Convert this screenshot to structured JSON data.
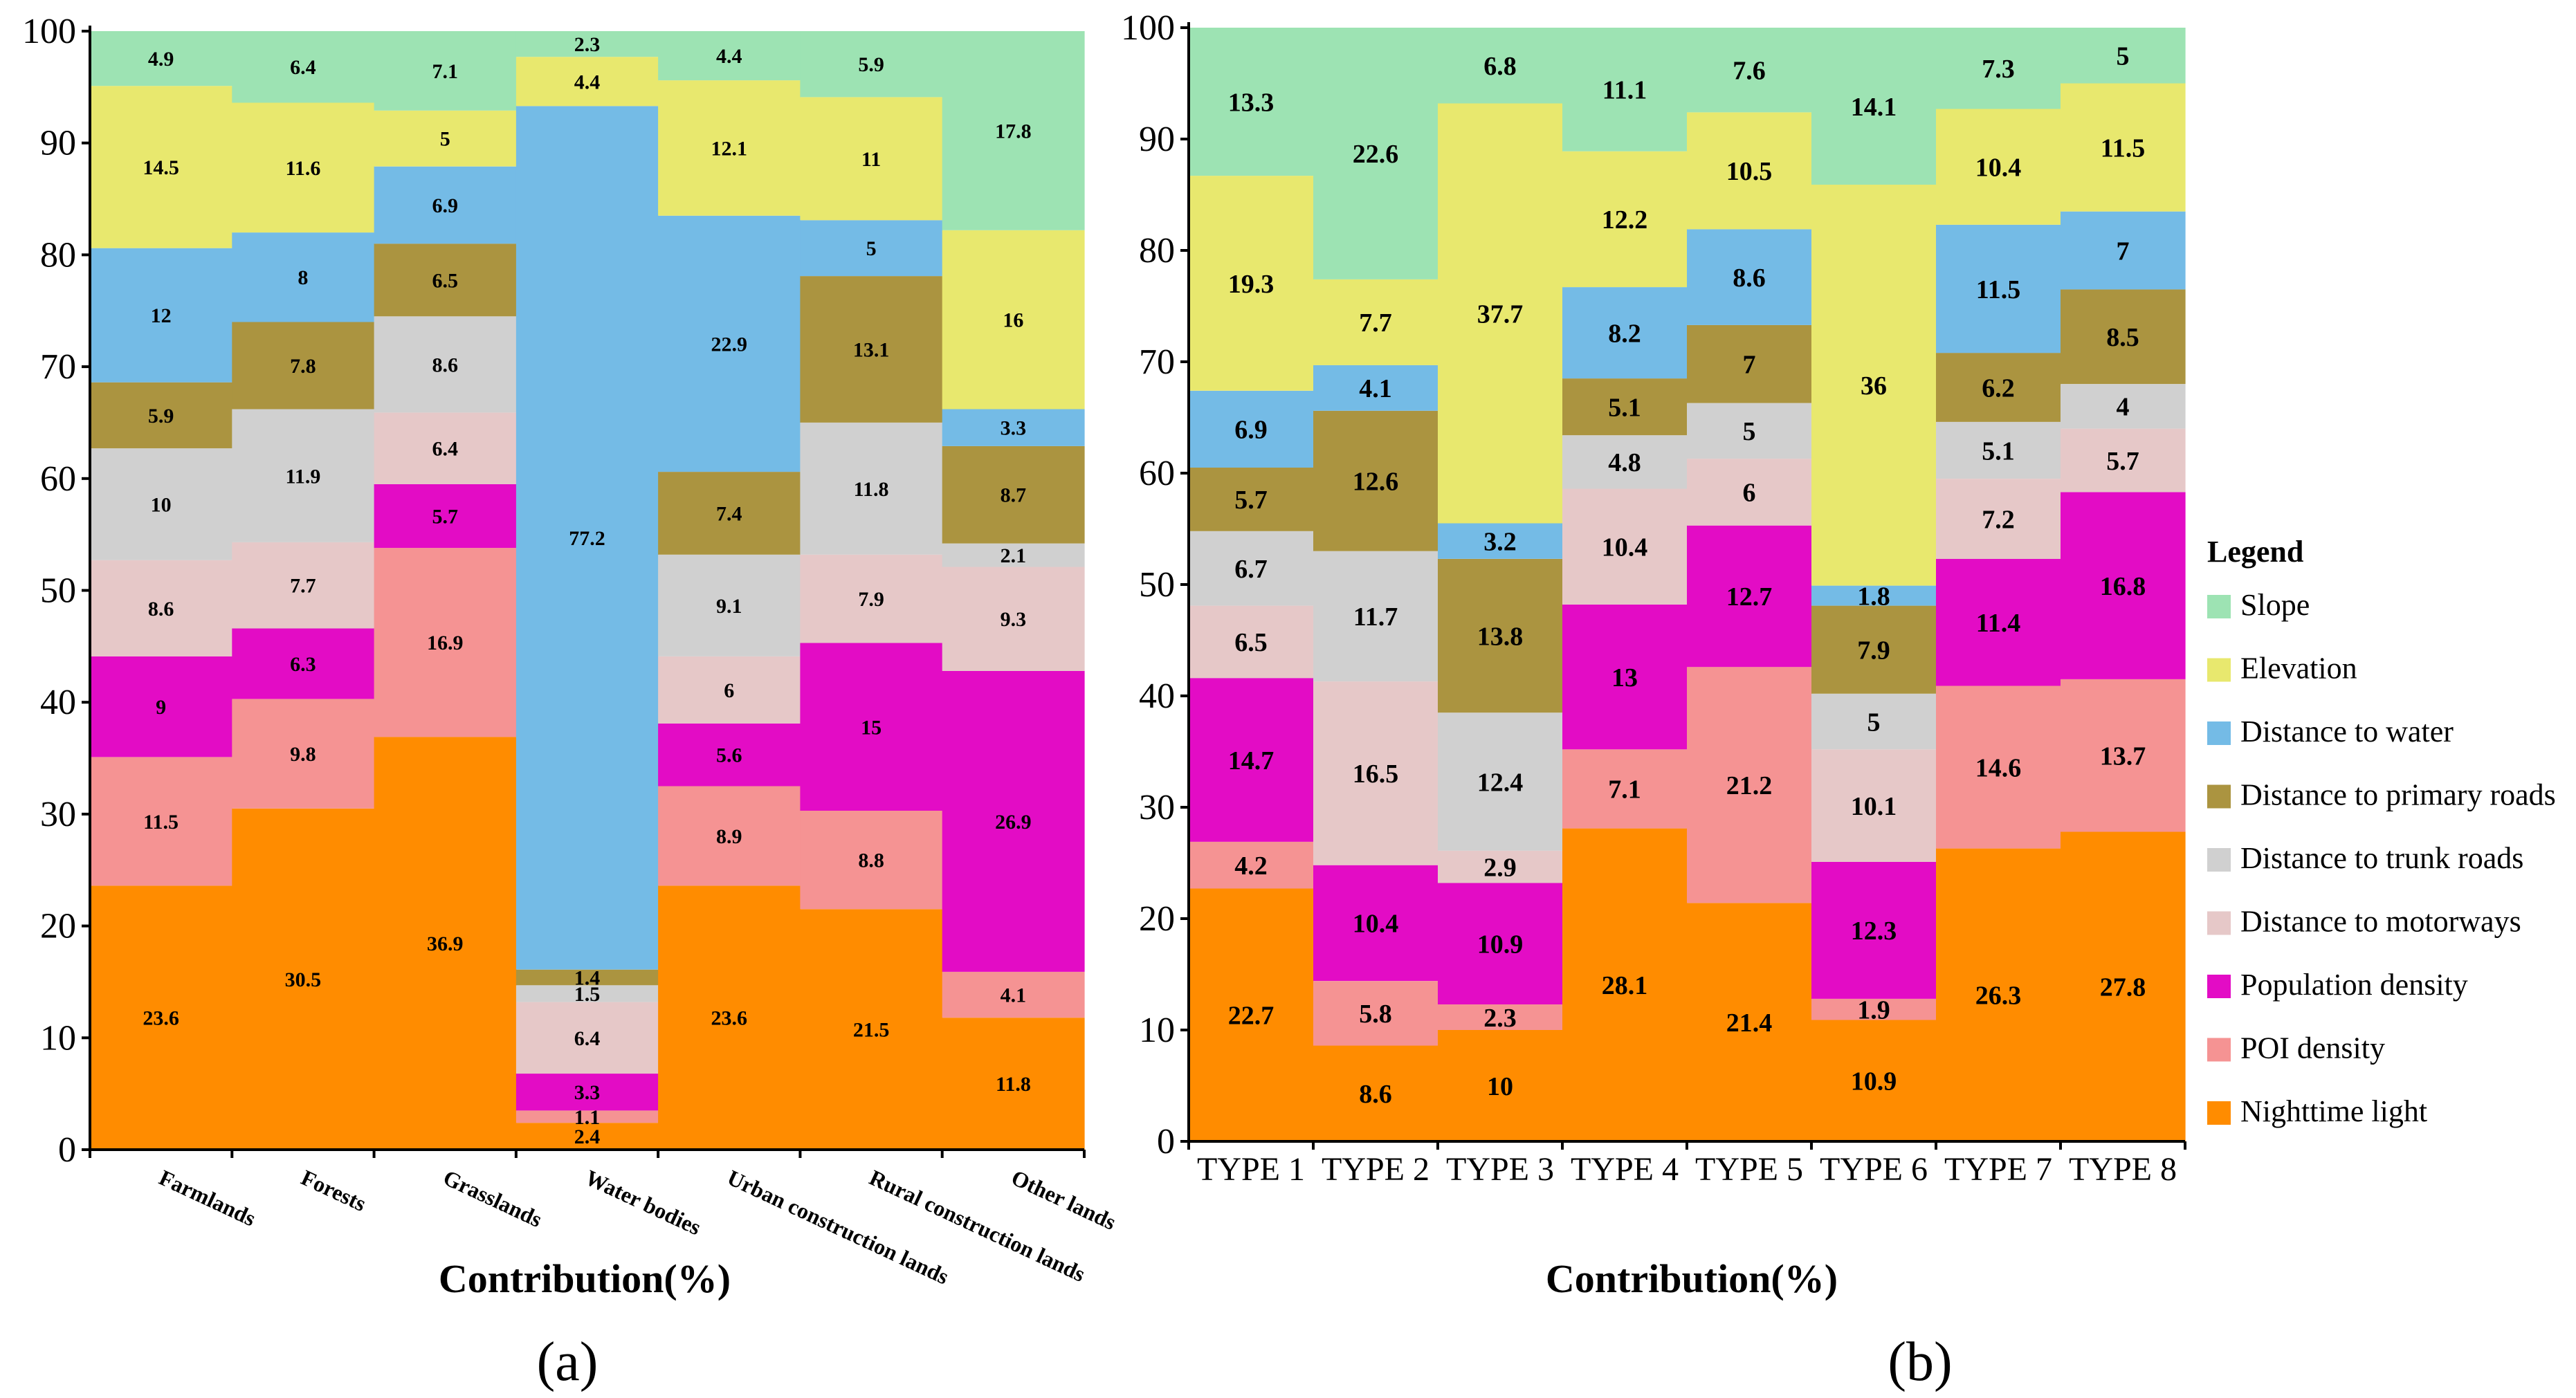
{
  "chart_data": [
    {
      "type": "bar",
      "stacked": true,
      "panel": "(a)",
      "title": "",
      "xlabel": "Contribution(%)",
      "ylabel": "",
      "ylim": [
        0,
        100
      ],
      "yticks": [
        0,
        10,
        20,
        30,
        40,
        50,
        60,
        70,
        80,
        90,
        100
      ],
      "categories": [
        "Farmlands",
        "Forests",
        "Grasslands",
        "Water bodies",
        "Urban construction lands",
        "Rural construction lands",
        "Other lands"
      ],
      "series": [
        {
          "name": "Nighttime light",
          "values": [
            23.6,
            30.5,
            36.9,
            2.4,
            23.6,
            21.5,
            11.8
          ]
        },
        {
          "name": "POI density",
          "values": [
            11.5,
            9.8,
            16.9,
            1.1,
            8.9,
            8.8,
            4.1
          ]
        },
        {
          "name": "Population density",
          "values": [
            9,
            6.3,
            5.7,
            3.3,
            5.6,
            15,
            26.9
          ]
        },
        {
          "name": "Distance  to motorways",
          "values": [
            8.6,
            7.7,
            6.4,
            6.4,
            6,
            7.9,
            9.3
          ]
        },
        {
          "name": "Distance to trunk roads",
          "values": [
            10,
            11.9,
            8.6,
            1.5,
            9.1,
            11.8,
            2.1
          ]
        },
        {
          "name": "Distance to primary roads",
          "values": [
            5.9,
            7.8,
            6.5,
            1.4,
            7.4,
            13.1,
            8.7
          ]
        },
        {
          "name": "Distance to water",
          "values": [
            12,
            8,
            6.9,
            77.2,
            22.9,
            5,
            3.3
          ]
        },
        {
          "name": "Elevation",
          "values": [
            14.5,
            11.6,
            5,
            4.4,
            12.1,
            11,
            16
          ]
        },
        {
          "name": "Slope",
          "values": [
            4.9,
            6.4,
            7.1,
            2.3,
            4.4,
            5.9,
            17.8
          ]
        }
      ]
    },
    {
      "type": "bar",
      "stacked": true,
      "panel": "(b)",
      "title": "",
      "xlabel": "Contribution(%)",
      "ylabel": "",
      "ylim": [
        0,
        100
      ],
      "yticks": [
        0,
        10,
        20,
        30,
        40,
        50,
        60,
        70,
        80,
        90,
        100
      ],
      "categories": [
        "TYPE 1",
        "TYPE 2",
        "TYPE 3",
        "TYPE 4",
        "TYPE 5",
        "TYPE 6",
        "TYPE 7",
        "TYPE 8"
      ],
      "series": [
        {
          "name": "Nighttime light",
          "values": [
            22.7,
            8.6,
            10,
            28.1,
            21.4,
            10.9,
            26.3,
            27.8
          ]
        },
        {
          "name": "POI density",
          "values": [
            4.2,
            5.8,
            2.3,
            7.1,
            21.2,
            1.9,
            14.6,
            13.7
          ]
        },
        {
          "name": "Population density",
          "values": [
            14.7,
            10.4,
            10.9,
            13,
            12.7,
            12.3,
            11.4,
            16.8
          ]
        },
        {
          "name": "Distance  to motorways",
          "values": [
            6.5,
            16.5,
            2.9,
            10.4,
            6,
            10.1,
            7.2,
            5.7
          ]
        },
        {
          "name": "Distance to trunk roads",
          "values": [
            6.7,
            11.7,
            12.4,
            4.8,
            5,
            5,
            5.1,
            4
          ]
        },
        {
          "name": "Distance to primary roads",
          "values": [
            5.7,
            12.6,
            13.8,
            5.1,
            7,
            7.9,
            6.2,
            8.5
          ]
        },
        {
          "name": "Distance to water",
          "values": [
            6.9,
            4.1,
            3.2,
            8.2,
            8.6,
            1.8,
            11.5,
            7
          ]
        },
        {
          "name": "Elevation",
          "values": [
            19.3,
            7.7,
            37.7,
            12.2,
            10.5,
            36,
            10.4,
            11.5
          ]
        },
        {
          "name": "Slope",
          "values": [
            13.3,
            22.6,
            6.8,
            11.1,
            7.6,
            14.1,
            7.3,
            5
          ]
        }
      ]
    }
  ],
  "legend": {
    "title": "Legend",
    "items": [
      {
        "name": "Slope",
        "color": "#9de3b3"
      },
      {
        "name": "Elevation",
        "color": "#e8e86e"
      },
      {
        "name": "Distance to water",
        "color": "#74bbe6"
      },
      {
        "name": "Distance to primary roads",
        "color": "#ab9440"
      },
      {
        "name": "Distance to trunk roads",
        "color": "#d0d0d0"
      },
      {
        "name": "Distance  to motorways",
        "color": "#e6c8c8"
      },
      {
        "name": "Population density",
        "color": "#e30cc5"
      },
      {
        "name": "POI density",
        "color": "#f59393"
      },
      {
        "name": "Nighttime light",
        "color": "#ff8c00"
      }
    ]
  },
  "colors": {
    "Nighttime light": "#ff8c00",
    "POI density": "#f59393",
    "Population density": "#e30cc5",
    "Distance  to motorways": "#e6c8c8",
    "Distance to trunk roads": "#d0d0d0",
    "Distance to primary roads": "#ab9440",
    "Distance to water": "#74bbe6",
    "Elevation": "#e8e86e",
    "Slope": "#9de3b3"
  }
}
